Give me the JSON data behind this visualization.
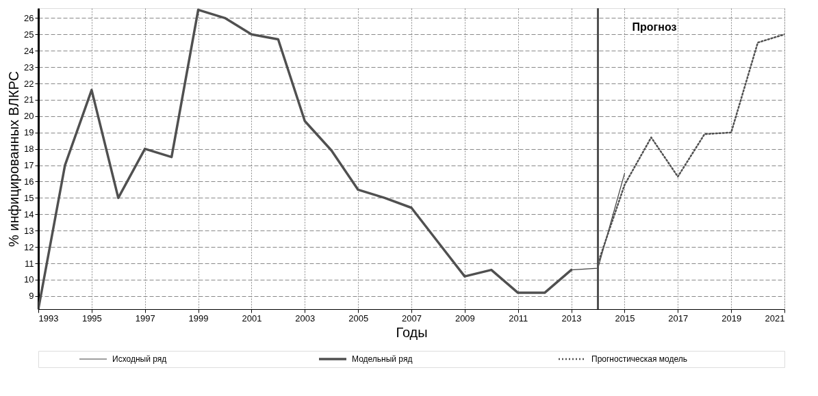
{
  "chart_data": {
    "type": "line",
    "xlabel": "Годы",
    "ylabel": "% инфицированных ВЛКРС",
    "xlim": [
      1993,
      2021
    ],
    "xticks": [
      1993,
      1995,
      1997,
      1999,
      2001,
      2003,
      2005,
      2007,
      2009,
      2011,
      2013,
      2015,
      2017,
      2019,
      2021
    ],
    "ylim": [
      8.2,
      26.6
    ],
    "yticks": [
      9,
      10,
      11,
      12,
      13,
      14,
      15,
      16,
      17,
      18,
      19,
      20,
      21,
      22,
      23,
      24,
      25,
      26
    ],
    "grid": true,
    "legend": "bottom",
    "series": [
      {
        "name": "Исходный ряд",
        "color": "#404040",
        "line_style": "solid",
        "x": [
          2013,
          2014,
          2015
        ],
        "values": [
          10.6,
          10.7,
          16.5
        ]
      },
      {
        "name": "Модельный ряд",
        "color": "#505050",
        "line_style": "solid",
        "x": [
          1993,
          1994,
          1995,
          1996,
          1997,
          1998,
          1999,
          2000,
          2001,
          2002,
          2003,
          2004,
          2005,
          2006,
          2007,
          2008,
          2009,
          2010,
          2011,
          2012,
          2013
        ],
        "values": [
          8.2,
          17.0,
          21.6,
          15.0,
          18.0,
          17.5,
          26.5,
          26.0,
          25.0,
          24.7,
          19.7,
          17.9,
          15.5,
          15.0,
          14.4,
          12.3,
          10.2,
          10.6,
          9.2,
          9.2,
          10.6
        ]
      },
      {
        "name": "Прогностическая модель",
        "color": "#505050",
        "line_style": "dotted",
        "x": [
          2014,
          2015,
          2016,
          2017,
          2018,
          2019,
          2020,
          2021
        ],
        "values": [
          11.0,
          15.8,
          18.7,
          16.3,
          18.9,
          19.0,
          24.5,
          25.0
        ]
      }
    ],
    "ref_lines": [
      {
        "axis": "x",
        "value": 2014,
        "color": "#505050"
      }
    ],
    "annotations": [
      "Прогноз"
    ]
  }
}
